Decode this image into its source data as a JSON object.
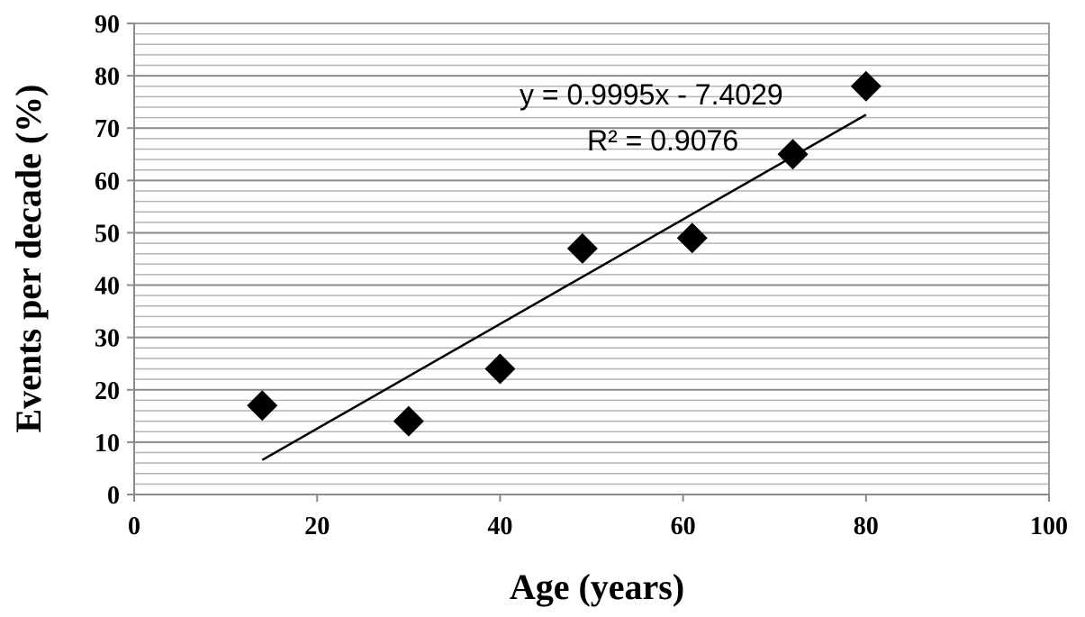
{
  "chart_data": {
    "type": "scatter",
    "xlabel": "Age (years)",
    "ylabel": "Events per decade (%)",
    "xlim": [
      0,
      100
    ],
    "ylim": [
      0,
      90
    ],
    "x_ticks": [
      0,
      20,
      40,
      60,
      80,
      100
    ],
    "y_ticks": [
      0,
      10,
      20,
      30,
      40,
      50,
      60,
      70,
      80,
      90
    ],
    "grid": "horizontal major and minor",
    "marker": "diamond",
    "marker_color": "#000000",
    "series": [
      {
        "x": [
          14,
          30,
          40,
          49,
          61,
          72,
          80
        ],
        "y": [
          17,
          14,
          24,
          47,
          49,
          65,
          78
        ]
      }
    ],
    "trendline": {
      "slope": 0.9995,
      "intercept": -7.4029,
      "x_range": [
        14,
        80
      ],
      "equation": "y = 0.9995x - 7.4029",
      "r_squared": "R² = 0.9076"
    }
  }
}
